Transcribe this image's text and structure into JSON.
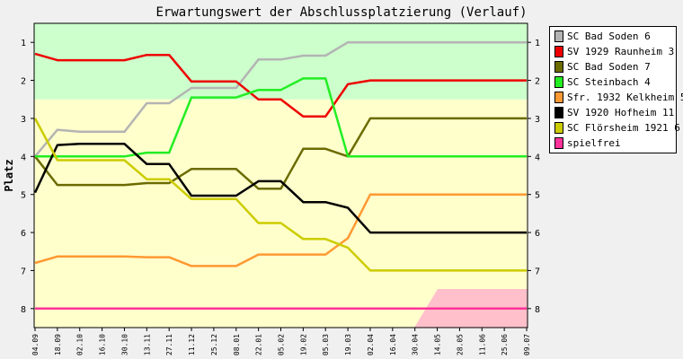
{
  "chart_data": {
    "type": "line",
    "title": "Erwartungswert der Abschlussplatzierung (Verlauf)",
    "ylabel": "Platz",
    "xlabel": "",
    "ylim": [
      0.5,
      8.5
    ],
    "y_ticks": [
      1,
      2,
      3,
      4,
      5,
      6,
      7,
      8
    ],
    "y_inverted": true,
    "x": [
      "04.09",
      "18.09",
      "02.10",
      "16.10",
      "30.10",
      "13.11",
      "27.11",
      "11.12",
      "25.12",
      "08.01",
      "22.01",
      "05.02",
      "19.02",
      "05.03",
      "19.03",
      "02.04",
      "16.04",
      "30.04",
      "14.05",
      "28.05",
      "11.06",
      "25.06",
      "09.07"
    ],
    "zones": [
      {
        "from": 0.5,
        "to": 2.5,
        "color": "#ccffcc"
      },
      {
        "from": 2.5,
        "to": 8.5,
        "color": "#ffffcc"
      }
    ],
    "series": [
      {
        "name": "SC Bad Soden 6",
        "color": "#b4b4b4",
        "values": [
          4.0,
          3.3,
          3.35,
          3.35,
          3.35,
          2.6,
          2.6,
          2.2,
          2.2,
          2.2,
          1.45,
          1.45,
          1.35,
          1.35,
          1.0,
          1.0,
          1.0,
          1.0,
          1.0,
          1.0,
          1.0,
          1.0,
          1.0
        ]
      },
      {
        "name": "SV 1929 Raunheim 3",
        "color": "#ee0000",
        "values": [
          1.3,
          1.47,
          1.47,
          1.47,
          1.47,
          1.33,
          1.33,
          2.03,
          2.03,
          2.03,
          2.5,
          2.5,
          2.95,
          2.95,
          2.1,
          2.0,
          2.0,
          2.0,
          2.0,
          2.0,
          2.0,
          2.0,
          2.0
        ]
      },
      {
        "name": "SC Bad Soden 7",
        "color": "#6b6b00",
        "values": [
          4.0,
          4.75,
          4.75,
          4.75,
          4.75,
          4.7,
          4.7,
          4.33,
          4.33,
          4.33,
          4.85,
          4.85,
          3.8,
          3.8,
          4.0,
          3.0,
          3.0,
          3.0,
          3.0,
          3.0,
          3.0,
          3.0,
          3.0
        ]
      },
      {
        "name": "SC Steinbach 4",
        "color": "#22ee22",
        "values": [
          4.0,
          4.0,
          4.0,
          4.0,
          4.0,
          3.9,
          3.9,
          2.45,
          2.45,
          2.45,
          2.25,
          2.25,
          1.95,
          1.95,
          4.0,
          4.0,
          4.0,
          4.0,
          4.0,
          4.0,
          4.0,
          4.0,
          4.0
        ]
      },
      {
        "name": "Sfr. 1932 Kelkheim 5",
        "color": "#ff9933",
        "values": [
          6.8,
          6.63,
          6.63,
          6.63,
          6.63,
          6.65,
          6.65,
          6.88,
          6.88,
          6.88,
          6.58,
          6.58,
          6.58,
          6.58,
          6.15,
          5.0,
          5.0,
          5.0,
          5.0,
          5.0,
          5.0,
          5.0,
          5.0
        ]
      },
      {
        "name": "SV 1920 Hofheim 11",
        "color": "#000000",
        "values": [
          4.95,
          3.7,
          3.67,
          3.67,
          3.67,
          4.2,
          4.2,
          5.03,
          5.03,
          5.03,
          4.65,
          4.65,
          5.2,
          5.2,
          5.35,
          6.0,
          6.0,
          6.0,
          6.0,
          6.0,
          6.0,
          6.0,
          6.0
        ]
      },
      {
        "name": "SC Flörsheim 1921 6",
        "color": "#cccc00",
        "values": [
          3.0,
          4.1,
          4.1,
          4.1,
          4.1,
          4.6,
          4.6,
          5.12,
          5.12,
          5.12,
          5.75,
          5.75,
          6.17,
          6.17,
          6.4,
          7.0,
          7.0,
          7.0,
          7.0,
          7.0,
          7.0,
          7.0,
          7.0
        ]
      },
      {
        "name": "spielfrei",
        "color": "#ff3399",
        "values": [
          8.0,
          8.0,
          8.0,
          8.0,
          8.0,
          8.0,
          8.0,
          8.0,
          8.0,
          8.0,
          8.0,
          8.0,
          8.0,
          8.0,
          8.0,
          8.0,
          8.0,
          8.0,
          8.0,
          8.0,
          8.0,
          8.0,
          8.0
        ]
      }
    ],
    "legend": "right"
  }
}
